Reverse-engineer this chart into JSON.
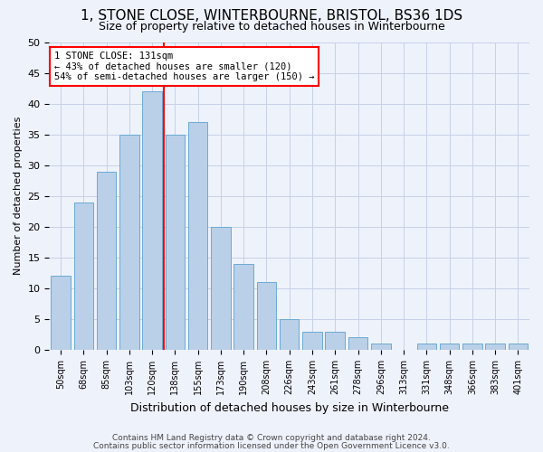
{
  "title1": "1, STONE CLOSE, WINTERBOURNE, BRISTOL, BS36 1DS",
  "title2": "Size of property relative to detached houses in Winterbourne",
  "xlabel": "Distribution of detached houses by size in Winterbourne",
  "ylabel": "Number of detached properties",
  "footer1": "Contains HM Land Registry data © Crown copyright and database right 2024.",
  "footer2": "Contains public sector information licensed under the Open Government Licence v3.0.",
  "categories": [
    "50sqm",
    "68sqm",
    "85sqm",
    "103sqm",
    "120sqm",
    "138sqm",
    "155sqm",
    "173sqm",
    "190sqm",
    "208sqm",
    "226sqm",
    "243sqm",
    "261sqm",
    "278sqm",
    "296sqm",
    "313sqm",
    "331sqm",
    "348sqm",
    "366sqm",
    "383sqm",
    "401sqm"
  ],
  "values": [
    12,
    24,
    29,
    35,
    42,
    35,
    37,
    20,
    14,
    11,
    5,
    3,
    3,
    2,
    1,
    0,
    1,
    1,
    1,
    1,
    1
  ],
  "bar_color": "#bad0e8",
  "bar_edge_color": "#6aaad4",
  "vline_x": 4.5,
  "vline_color": "red",
  "annotation_title": "1 STONE CLOSE: 131sqm",
  "annotation_line1": "← 43% of detached houses are smaller (120)",
  "annotation_line2": "54% of semi-detached houses are larger (150) →",
  "annotation_box_color": "white",
  "annotation_box_edge": "red",
  "ylim": [
    0,
    50
  ],
  "yticks": [
    0,
    5,
    10,
    15,
    20,
    25,
    30,
    35,
    40,
    45,
    50
  ],
  "background_color": "#eef2fb",
  "grid_color": "#c8d0e8",
  "title1_fontsize": 11,
  "title2_fontsize": 9
}
